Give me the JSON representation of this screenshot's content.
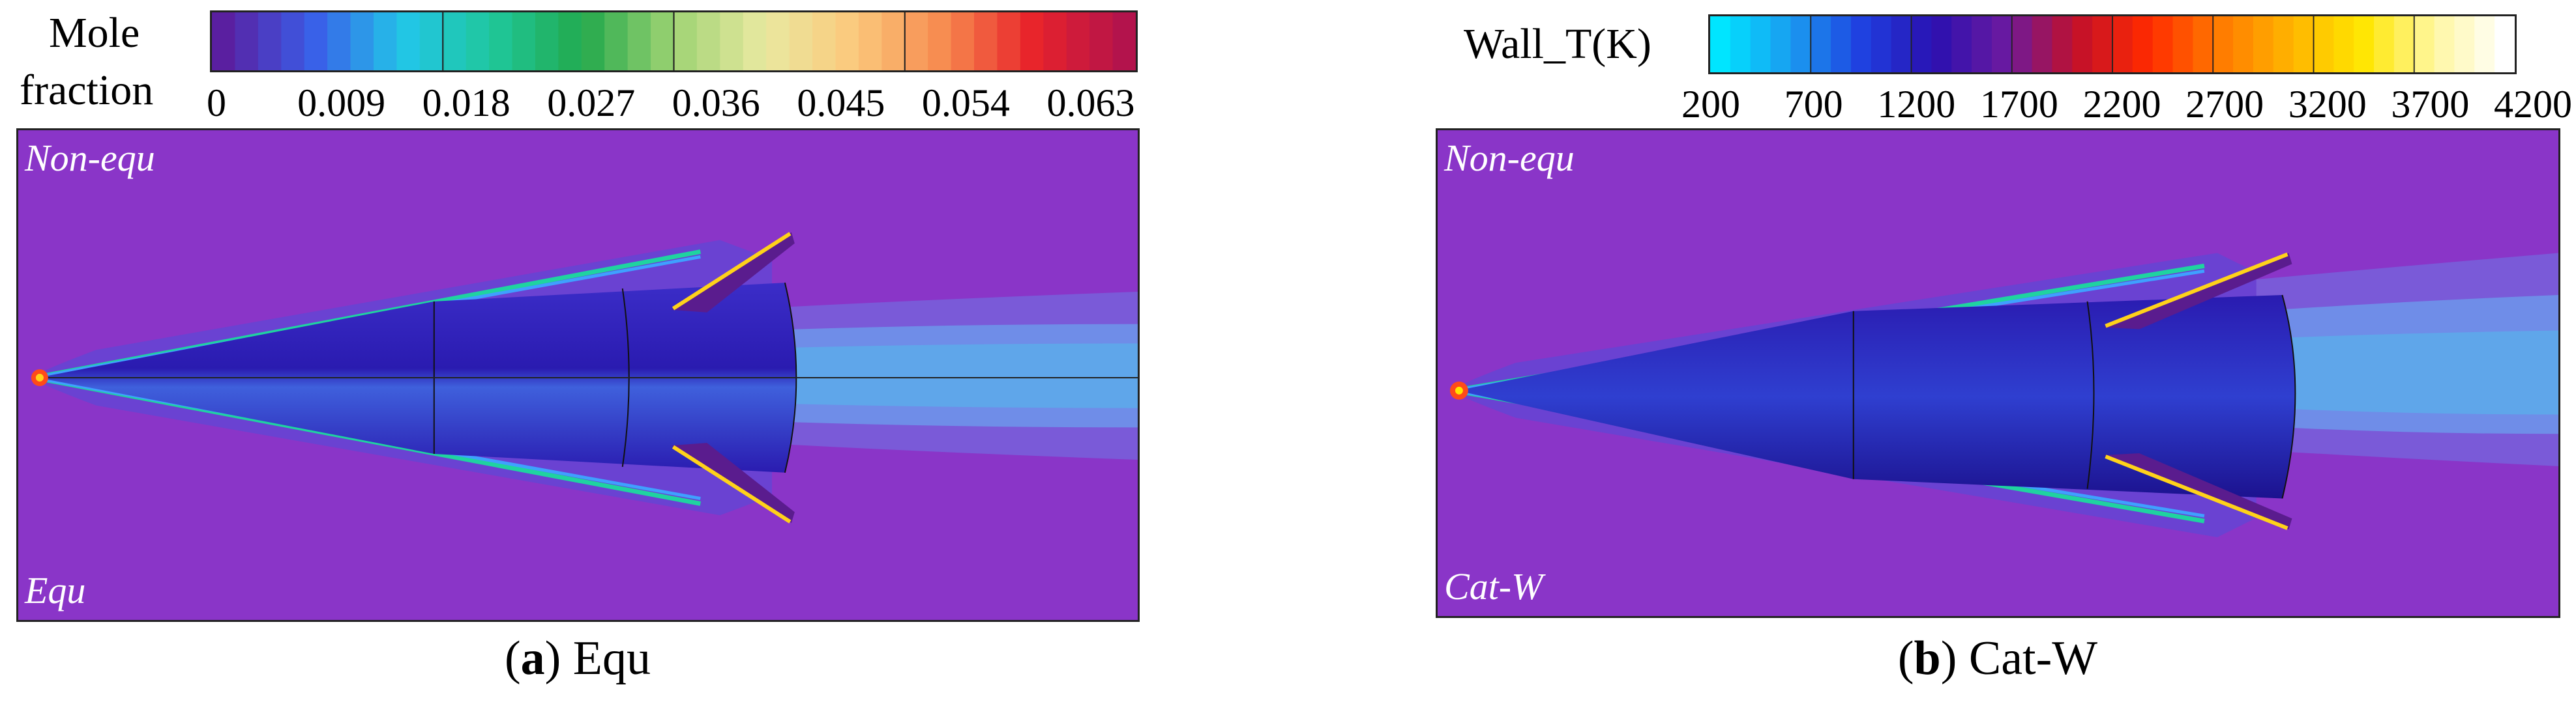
{
  "panel_a": {
    "colorbar": {
      "title_line1": "Mole",
      "title_line2": "fraction",
      "ticks": [
        "0",
        "0.009",
        "0.018",
        "0.027",
        "0.036",
        "0.045",
        "0.054",
        "0.063"
      ],
      "colors": [
        "#5a1fa0",
        "#3a5ee8",
        "#22c6e8",
        "#1fc79a",
        "#23a94c",
        "#9fd373",
        "#e9e9a1",
        "#fbc97c",
        "#f78a4f",
        "#e8222a",
        "#b3134c"
      ]
    },
    "label_top": "Non-equ",
    "label_bottom": "Equ",
    "caption_letter": "a",
    "caption_text": "Equ"
  },
  "panel_b": {
    "colorbar": {
      "title": "Wall_T(K)",
      "ticks": [
        "200",
        "700",
        "1200",
        "1700",
        "2200",
        "2700",
        "3200",
        "3700",
        "4200"
      ],
      "colors": [
        "#00e5ff",
        "#1a9bf0",
        "#1f3fe0",
        "#2a10b0",
        "#6a1aa0",
        "#c2102a",
        "#ff2a00",
        "#ff7a00",
        "#ffb400",
        "#ffe600",
        "#fff7a0",
        "#ffffff"
      ]
    },
    "label_top": "Non-equ",
    "label_bottom": "Cat-W",
    "caption_letter": "b",
    "caption_text": "Cat-W"
  },
  "colors": {
    "background_field": "#8a35c8",
    "vehicle_dark": "#2a1bb0",
    "vehicle_mid": "#2f59d8",
    "wake_light": "#5fa6ea",
    "fin_edge": "#ffd21a"
  }
}
